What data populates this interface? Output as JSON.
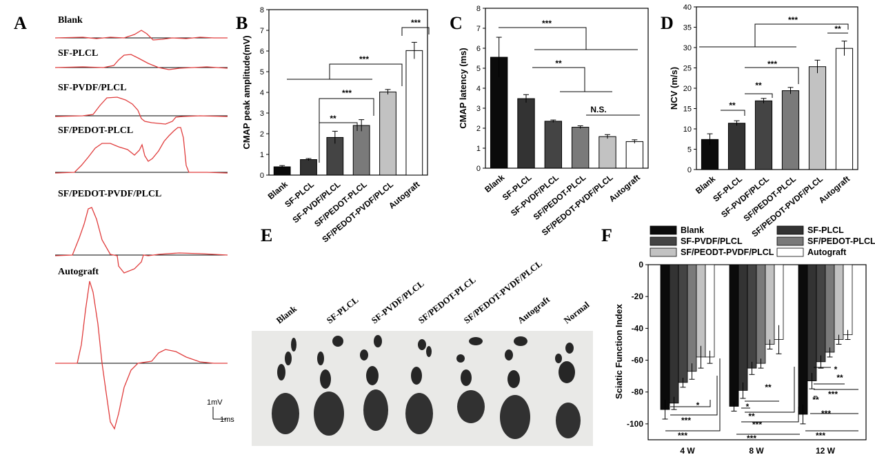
{
  "panels": {
    "A": "A",
    "B": "B",
    "C": "C",
    "D": "D",
    "E": "E",
    "F": "F"
  },
  "colors": {
    "g0": "#0b0b0b",
    "g1": "#333333",
    "g2": "#444444",
    "g3": "#7a7a7a",
    "g4": "#c2c2c2",
    "g5": "#ffffff",
    "trace": "#e03c3c"
  },
  "traces": {
    "labels": [
      "Blank",
      "SF-PLCL",
      "SF-PVDF/PLCL",
      "SF/PEDOT-PLCL",
      "SF/PEDOT-PVDF/PLCL",
      "Autograft"
    ],
    "scalebar_v": "1mV",
    "scalebar_h": "1ms"
  },
  "footprints": {
    "labels": [
      "Blank",
      "SF-PLCL",
      "SF-PVDF/PLCL",
      "SF/PEDOT-PLCL",
      "SF/PEDOT-PVDF/PLCL",
      "Autograft",
      "Normal"
    ]
  },
  "chart_data": [
    {
      "id": "B",
      "type": "bar",
      "categories": [
        "Blank",
        "SF-PLCL",
        "SF-PVDF/PLCL",
        "SF/PEDOT-PLCL",
        "SF/PEDOT-PVDF/PLCL",
        "Autograft"
      ],
      "values": [
        0.4,
        0.75,
        1.82,
        2.4,
        4.02,
        6.02
      ],
      "errors": [
        0.06,
        0.05,
        0.3,
        0.28,
        0.12,
        0.4
      ],
      "ylabel": "CMAP peak amplitude(mV)",
      "ylim": [
        0,
        8
      ],
      "yticks": [
        "0",
        "1",
        "2",
        "3",
        "4",
        "5",
        "6",
        "7",
        "8"
      ],
      "annotations": [
        "**",
        "***",
        "***",
        "***"
      ]
    },
    {
      "id": "C",
      "type": "bar",
      "categories": [
        "Blank",
        "SF-PLCL",
        "SF-PVDF/PLCL",
        "SF/PEDOT-PLCL",
        "SF/PEDOT-PVDF/PLCL",
        "Autograft"
      ],
      "values": [
        5.55,
        3.48,
        2.35,
        2.05,
        1.58,
        1.33
      ],
      "errors": [
        1.0,
        0.2,
        0.06,
        0.07,
        0.1,
        0.09
      ],
      "ylabel": "CMAP latency (ms)",
      "ylim": [
        0,
        8
      ],
      "yticks": [
        "0",
        "1",
        "2",
        "3",
        "4",
        "5",
        "6",
        "7",
        "8"
      ],
      "annotations": [
        "***",
        "**",
        "N.S."
      ]
    },
    {
      "id": "D",
      "type": "bar",
      "categories": [
        "Blank",
        "SF-PLCL",
        "SF-PVDF/PLCL",
        "SF/PEDOT-PLCL",
        "SF/PEDOT-PVDF/PLCL",
        "Autograft"
      ],
      "values": [
        7.4,
        11.4,
        16.9,
        19.4,
        25.3,
        29.8
      ],
      "errors": [
        1.4,
        0.6,
        0.6,
        0.8,
        1.6,
        1.8
      ],
      "ylabel": "NCV (m/s)",
      "ylim": [
        0,
        40
      ],
      "yticks": [
        "0",
        "5",
        "10",
        "15",
        "20",
        "25",
        "30",
        "35",
        "40"
      ],
      "annotations": [
        "***",
        "**",
        "**",
        "**",
        "***"
      ]
    },
    {
      "id": "F",
      "type": "bar",
      "categories": [
        "4 W",
        "8 W",
        "12 W"
      ],
      "series": [
        {
          "name": "Blank",
          "values": [
            -91,
            -89,
            -94
          ],
          "errors": [
            6,
            3,
            6
          ]
        },
        {
          "name": "SF-PLCL",
          "values": [
            -87,
            -79,
            -73
          ],
          "errors": [
            4,
            5,
            5
          ]
        },
        {
          "name": "SF-PVDF/PLCL",
          "values": [
            -74,
            -65,
            -61
          ],
          "errors": [
            3,
            4,
            4
          ]
        },
        {
          "name": "SF/PEDOT-PLCL",
          "values": [
            -67,
            -62,
            -55
          ],
          "errors": [
            5,
            3,
            3
          ]
        },
        {
          "name": "SF/PEODT-PVDF/PLCL",
          "values": [
            -58,
            -50,
            -47
          ],
          "errors": [
            7,
            3,
            3
          ]
        },
        {
          "name": "Autograft",
          "values": [
            -58,
            -47,
            -44
          ],
          "errors": [
            4,
            9,
            3
          ]
        }
      ],
      "ylabel": "Sciatic Function Index",
      "ylim": [
        -110,
        0
      ],
      "yticks": [
        "0",
        "-20",
        "-40",
        "-60",
        "-80",
        "-100"
      ],
      "legend": "top",
      "annotations": [
        "*",
        "***",
        "***",
        "*",
        "**",
        "**",
        "***",
        "***",
        "*",
        "**",
        "**",
        "***",
        "***",
        "***"
      ]
    }
  ]
}
